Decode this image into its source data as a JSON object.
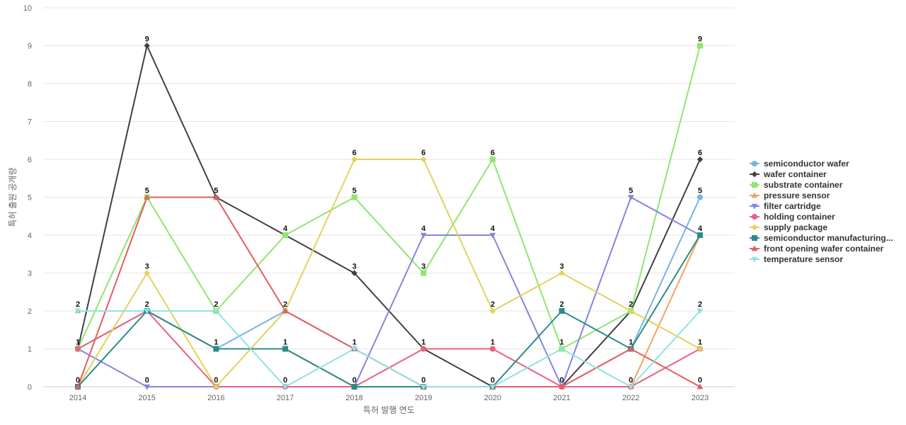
{
  "chart_data": {
    "type": "line",
    "title": "",
    "xlabel": "특허 발행 연도",
    "ylabel": "특허 출원 공개량",
    "x": [
      "2014",
      "2015",
      "2016",
      "2017",
      "2018",
      "2019",
      "2020",
      "2021",
      "2022",
      "2023"
    ],
    "ylim": [
      0,
      10
    ],
    "yticks": [
      "0",
      "1",
      "2",
      "3",
      "4",
      "5",
      "6",
      "7",
      "8",
      "9",
      "10"
    ],
    "grid": true,
    "legend_position": "right",
    "series": [
      {
        "name": "semiconductor wafer",
        "color": "#74b3e6",
        "marker": "circle",
        "values": [
          1,
          2,
          1,
          2,
          1,
          0,
          0,
          0,
          1,
          5
        ]
      },
      {
        "name": "wafer container",
        "color": "#404040",
        "marker": "diamond",
        "values": [
          1,
          9,
          5,
          4,
          3,
          1,
          0,
          0,
          2,
          6
        ]
      },
      {
        "name": "substrate container",
        "color": "#90e570",
        "marker": "square",
        "values": [
          1,
          5,
          2,
          4,
          5,
          3,
          6,
          1,
          2,
          9
        ]
      },
      {
        "name": "pressure sensor",
        "color": "#f4a35f",
        "marker": "triangle",
        "values": [
          2,
          2,
          1,
          1,
          0,
          0,
          0,
          0,
          0,
          4
        ]
      },
      {
        "name": "filter cartridge",
        "color": "#8585de",
        "marker": "triangle-down",
        "values": [
          1,
          0,
          0,
          0,
          0,
          4,
          4,
          0,
          5,
          4
        ]
      },
      {
        "name": "holding container",
        "color": "#e8617e",
        "marker": "circle",
        "values": [
          1,
          2,
          0,
          0,
          0,
          1,
          1,
          0,
          0,
          1
        ]
      },
      {
        "name": "supply package",
        "color": "#e2d25c",
        "marker": "diamond",
        "values": [
          0,
          3,
          0,
          2,
          6,
          6,
          2,
          3,
          2,
          1
        ]
      },
      {
        "name": "semiconductor manufacturing...",
        "color": "#2b8c87",
        "marker": "square",
        "values": [
          0,
          2,
          1,
          1,
          0,
          0,
          0,
          2,
          1,
          4
        ]
      },
      {
        "name": "front opening wafer container",
        "color": "#e45e5e",
        "marker": "triangle",
        "values": [
          0,
          5,
          5,
          2,
          1,
          0,
          0,
          0,
          1,
          0
        ]
      },
      {
        "name": "temperature sensor",
        "color": "#8fe3e1",
        "marker": "triangle-down",
        "values": [
          2,
          2,
          2,
          0,
          1,
          0,
          0,
          1,
          0,
          2
        ]
      }
    ],
    "data_labels": [
      {
        "x": "2014",
        "labels": [
          "2",
          "1",
          "0"
        ]
      },
      {
        "x": "2015",
        "labels": [
          "9",
          "5",
          "3",
          "2",
          "0"
        ]
      },
      {
        "x": "2016",
        "labels": [
          "5",
          "2",
          "1",
          "0"
        ]
      },
      {
        "x": "2017",
        "labels": [
          "4",
          "2",
          "1",
          "0"
        ]
      },
      {
        "x": "2018",
        "labels": [
          "6",
          "5",
          "3",
          "1",
          "0"
        ]
      },
      {
        "x": "2019",
        "labels": [
          "6",
          "4",
          "3",
          "1",
          "0"
        ]
      },
      {
        "x": "2020",
        "labels": [
          "6",
          "4",
          "2",
          "1",
          "0"
        ]
      },
      {
        "x": "2021",
        "labels": [
          "3",
          "2",
          "1",
          "0"
        ]
      },
      {
        "x": "2022",
        "labels": [
          "5",
          "2",
          "1",
          "0"
        ]
      },
      {
        "x": "2023",
        "labels": [
          "9",
          "6",
          "5",
          "4",
          "2",
          "1",
          "0"
        ]
      }
    ]
  }
}
